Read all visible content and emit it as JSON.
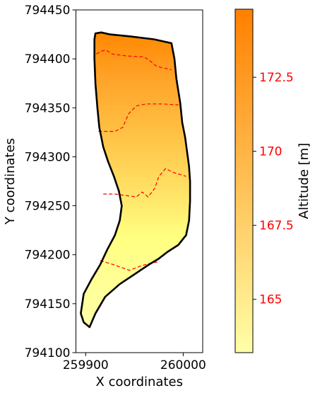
{
  "chart_data": {
    "type": "heatmap",
    "title": "",
    "xlabel": "X coordinates",
    "ylabel": "Y coordinates",
    "xlim": [
      259890,
      260020
    ],
    "ylim": [
      794100,
      794450
    ],
    "x_ticks": [
      259900,
      260000
    ],
    "x_tick_labels": [
      "259900",
      "260000"
    ],
    "y_ticks": [
      794100,
      794150,
      794200,
      794250,
      794300,
      794350,
      794400,
      794450
    ],
    "y_tick_labels": [
      "794100",
      "794150",
      "794200",
      "794250",
      "794300",
      "794350",
      "794400",
      "794450"
    ],
    "boundary_color": "#000000",
    "boundary": [
      [
        259910,
        794426
      ],
      [
        259916,
        794427
      ],
      [
        259925,
        794425
      ],
      [
        259945,
        794423
      ],
      [
        259970,
        794420
      ],
      [
        259988,
        794416
      ],
      [
        259991,
        794400
      ],
      [
        259993,
        794380
      ],
      [
        259997,
        794355
      ],
      [
        259999,
        794335
      ],
      [
        260002,
        794320
      ],
      [
        260004,
        794305
      ],
      [
        260006,
        794290
      ],
      [
        260007,
        794275
      ],
      [
        260007,
        794255
      ],
      [
        260006,
        794235
      ],
      [
        260003,
        794220
      ],
      [
        259995,
        794210
      ],
      [
        259984,
        794203
      ],
      [
        259975,
        794196
      ],
      [
        259965,
        794190
      ],
      [
        259950,
        794180
      ],
      [
        259935,
        794170
      ],
      [
        259920,
        794157
      ],
      [
        259910,
        794140
      ],
      [
        259904,
        794126
      ],
      [
        259898,
        794131
      ],
      [
        259895,
        794140
      ],
      [
        259898,
        794160
      ],
      [
        259906,
        794175
      ],
      [
        259915,
        794190
      ],
      [
        259922,
        794205
      ],
      [
        259930,
        794220
      ],
      [
        259935,
        794235
      ],
      [
        259937,
        794250
      ],
      [
        259934,
        794265
      ],
      [
        259929,
        794280
      ],
      [
        259923,
        794295
      ],
      [
        259918,
        794310
      ],
      [
        259914,
        794330
      ],
      [
        259912,
        794350
      ],
      [
        259910,
        794375
      ],
      [
        259909,
        794400
      ],
      [
        259909,
        794420
      ]
    ],
    "contour_color": "#ff0000",
    "contours": [
      [
        [
          259911,
          794405
        ],
        [
          259916,
          794408
        ],
        [
          259921,
          794409
        ],
        [
          259927,
          794405
        ],
        [
          259942,
          794403
        ],
        [
          259960,
          794402
        ],
        [
          259966,
          794398
        ],
        [
          259972,
          794393
        ],
        [
          259978,
          794391
        ],
        [
          259988,
          794389
        ]
      ],
      [
        [
          259913,
          794326
        ],
        [
          259930,
          794326
        ],
        [
          259938,
          794330
        ],
        [
          259944,
          794344
        ],
        [
          259952,
          794352
        ],
        [
          259962,
          794354
        ],
        [
          259979,
          794354
        ],
        [
          259995,
          794353
        ]
      ],
      [
        [
          259918,
          794262
        ],
        [
          259930,
          794262
        ],
        [
          259944,
          794260
        ],
        [
          259952,
          794259
        ],
        [
          259958,
          794264
        ],
        [
          259964,
          794259
        ],
        [
          259971,
          794268
        ],
        [
          259975,
          794280
        ],
        [
          259982,
          794288
        ],
        [
          259990,
          794284
        ],
        [
          260003,
          794280
        ]
      ],
      [
        [
          259915,
          794194
        ],
        [
          259928,
          794190
        ],
        [
          259945,
          794184
        ],
        [
          259955,
          794188
        ],
        [
          259965,
          794191
        ],
        [
          259976,
          794193
        ]
      ]
    ],
    "colorbar": {
      "label": "Altitude [m]",
      "vmin": 163.2,
      "vmax": 174.8,
      "ticks": [
        165,
        167.5,
        170,
        172.5
      ],
      "tick_labels": [
        "165",
        "167.5",
        "170",
        "172.5"
      ],
      "tick_label_color": "#ff0000",
      "colormap": "Wistia",
      "color_low": "#ffffa8",
      "color_high": "#ff8000"
    }
  }
}
